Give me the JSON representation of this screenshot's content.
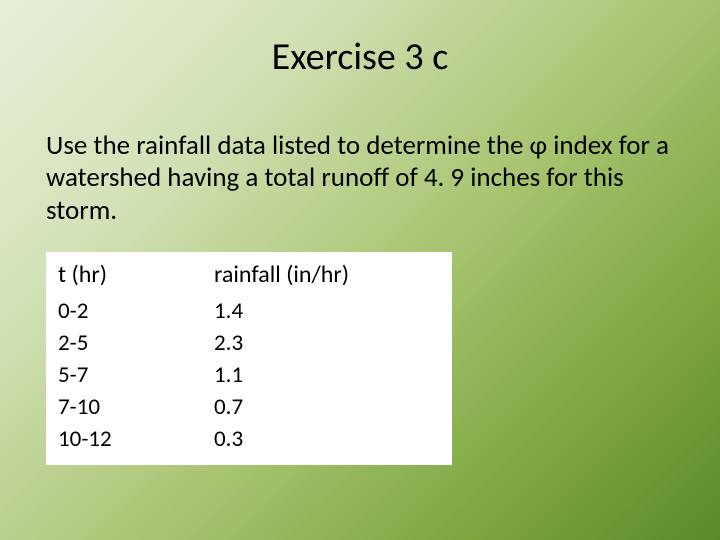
{
  "slide": {
    "title": "Exercise 3 c",
    "body": "Use the rainfall data listed to determine the φ index for a watershed having a total runoff of 4. 9 inches for this storm."
  },
  "table": {
    "columns": [
      "t (hr)",
      "rainfall (in/hr)"
    ],
    "rows": [
      [
        "0-2",
        "1.4"
      ],
      [
        "2-5",
        "2.3"
      ],
      [
        "5-7",
        "1.1"
      ],
      [
        "7-10",
        "0.7"
      ],
      [
        "10-12",
        "0.3"
      ]
    ],
    "background_color": "#ffffff",
    "header_fontsize": 24,
    "cell_fontsize": 23
  },
  "style": {
    "gradient_start": "#e8f0d8",
    "gradient_end": "#5c8a2a",
    "title_fontsize": 38,
    "body_fontsize": 27,
    "font_family": "Calibri"
  }
}
